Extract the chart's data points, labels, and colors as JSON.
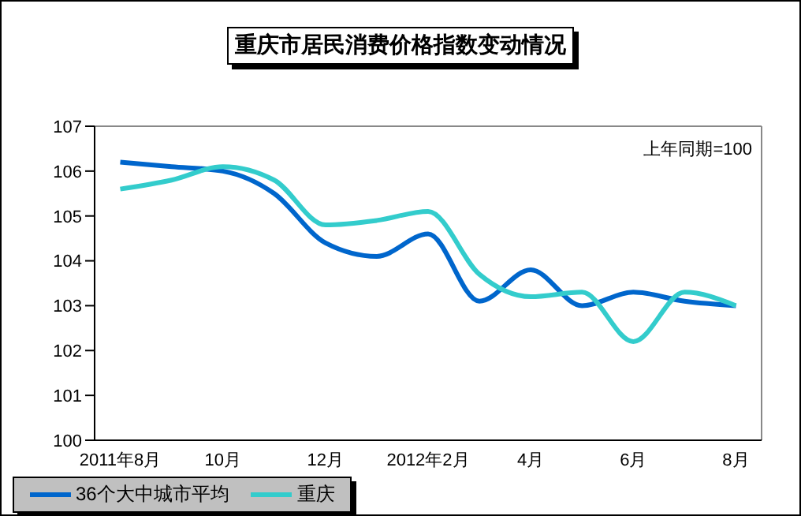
{
  "chart_data": {
    "type": "line",
    "title": "重庆市居民消费价格指数变动情况",
    "categories": [
      "2011年8月",
      null,
      "10月",
      null,
      "12月",
      null,
      "2012年2月",
      null,
      "4月",
      null,
      "6月",
      null,
      "8月"
    ],
    "series": [
      {
        "name": "36个大中城市平均",
        "color": "#0066cc",
        "values": [
          106.2,
          106.1,
          106.0,
          105.5,
          104.4,
          104.1,
          104.6,
          103.1,
          103.8,
          103.0,
          103.3,
          103.1,
          103.0
        ]
      },
      {
        "name": "重庆",
        "color": "#33cccc",
        "values": [
          105.6,
          105.8,
          106.1,
          105.8,
          104.8,
          104.9,
          105.1,
          103.7,
          103.2,
          103.3,
          102.2,
          103.3,
          103.0
        ]
      }
    ],
    "ylim": [
      100,
      107
    ],
    "yticks": [
      100,
      101,
      102,
      103,
      104,
      105,
      106,
      107
    ],
    "annotations": [
      "上年同期=100"
    ],
    "grid": false,
    "legend": "bottom left",
    "marker": "none",
    "line_style": "solid"
  }
}
